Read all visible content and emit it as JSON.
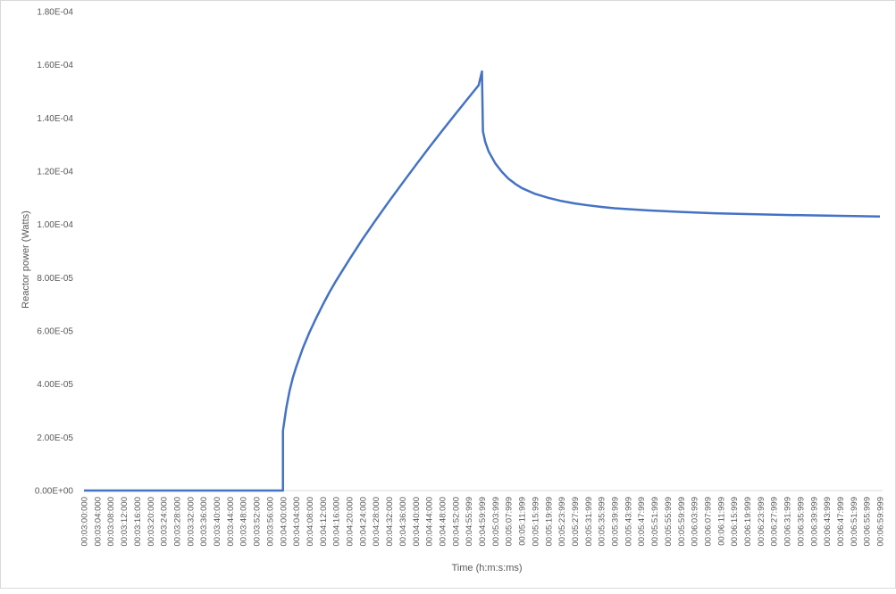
{
  "chart_data": {
    "type": "line",
    "title": "",
    "xlabel": "Time (h:m:s:ms)",
    "ylabel": "Reactor power  (Watts)",
    "ylim": [
      0,
      0.00018
    ],
    "y_ticks": [
      "0.00E+00",
      "2.00E-05",
      "4.00E-05",
      "6.00E-05",
      "8.00E-05",
      "1.00E-04",
      "1.20E-04",
      "1.40E-04",
      "1.60E-04",
      "1.80E-04"
    ],
    "y_tick_values": [
      0,
      2e-05,
      4e-05,
      6e-05,
      8e-05,
      0.0001,
      0.00012,
      0.00014,
      0.00016,
      0.00018
    ],
    "x_tick_labels": [
      "00:03:00:000",
      "00:03:04:000",
      "00:03:08:000",
      "00:03:12:000",
      "00:03:16:000",
      "00:03:20:000",
      "00:03:24:000",
      "00:03:28:000",
      "00:03:32:000",
      "00:03:36:000",
      "00:03:40:000",
      "00:03:44:000",
      "00:03:48:000",
      "00:03:52:000",
      "00:03:56:000",
      "00:04:00:000",
      "00:04:04:000",
      "00:04:08:000",
      "00:04:12:000",
      "00:04:16:000",
      "00:04:20:000",
      "00:04:24:000",
      "00:04:28:000",
      "00:04:32:000",
      "00:04:36:000",
      "00:04:40:000",
      "00:04:44:000",
      "00:04:48:000",
      "00:04:52:000",
      "00:04:55:999",
      "00:04:59:999",
      "00:05:03:999",
      "00:05:07:999",
      "00:05:11:999",
      "00:05:15:999",
      "00:05:19:999",
      "00:05:23:999",
      "00:05:27:999",
      "00:05:31:999",
      "00:05:35:999",
      "00:05:39:999",
      "00:05:43:999",
      "00:05:47:999",
      "00:05:51:999",
      "00:05:55:999",
      "00:05:59:999",
      "00:06:03:999",
      "00:06:07:999",
      "00:06:11:999",
      "00:06:15:999",
      "00:06:19:999",
      "00:06:23:999",
      "00:06:27:999",
      "00:06:31:999",
      "00:06:35:999",
      "00:06:39:999",
      "00:06:43:999",
      "00:06:47:999",
      "00:06:51:999",
      "00:06:55:999",
      "00:06:59:999"
    ],
    "x_seconds_range": [
      0,
      240
    ],
    "grid": false,
    "legend": "none",
    "series": [
      {
        "color": "#4472c4",
        "points": [
          [
            0,
            0
          ],
          [
            56,
            0
          ],
          [
            60,
            0
          ],
          [
            60,
            2.25e-05
          ],
          [
            61,
            3.1e-05
          ],
          [
            62,
            3.75e-05
          ],
          [
            63,
            4.25e-05
          ],
          [
            64,
            4.65e-05
          ],
          [
            66,
            5.35e-05
          ],
          [
            68,
            5.95e-05
          ],
          [
            70,
            6.48e-05
          ],
          [
            72,
            6.98e-05
          ],
          [
            74,
            7.45e-05
          ],
          [
            76,
            7.88e-05
          ],
          [
            80,
            8.68e-05
          ],
          [
            84,
            9.45e-05
          ],
          [
            88,
            0.0001017
          ],
          [
            92,
            0.0001087
          ],
          [
            96,
            0.0001155
          ],
          [
            100,
            0.0001222
          ],
          [
            104,
            0.0001288
          ],
          [
            108,
            0.0001352
          ],
          [
            112,
            0.0001415
          ],
          [
            116,
            0.0001477
          ],
          [
            119,
            0.0001523
          ],
          [
            120,
            0.0001575
          ],
          [
            120.3,
            0.000135
          ],
          [
            121,
            0.000131
          ],
          [
            122,
            0.0001275
          ],
          [
            124,
            0.000123
          ],
          [
            126,
            0.0001198
          ],
          [
            128,
            0.0001172
          ],
          [
            130,
            0.0001153
          ],
          [
            132,
            0.0001137
          ],
          [
            136,
            0.0001115
          ],
          [
            140,
            0.00011
          ],
          [
            144,
            0.0001088
          ],
          [
            148,
            0.0001079
          ],
          [
            152,
            0.0001072
          ],
          [
            156,
            0.0001066
          ],
          [
            160,
            0.0001061
          ],
          [
            170,
            0.0001053
          ],
          [
            180,
            0.0001047
          ],
          [
            190,
            0.0001042
          ],
          [
            200,
            0.0001039
          ],
          [
            210,
            0.0001036
          ],
          [
            220,
            0.0001034
          ],
          [
            230,
            0.0001032
          ],
          [
            240,
            0.000103
          ]
        ]
      }
    ]
  }
}
